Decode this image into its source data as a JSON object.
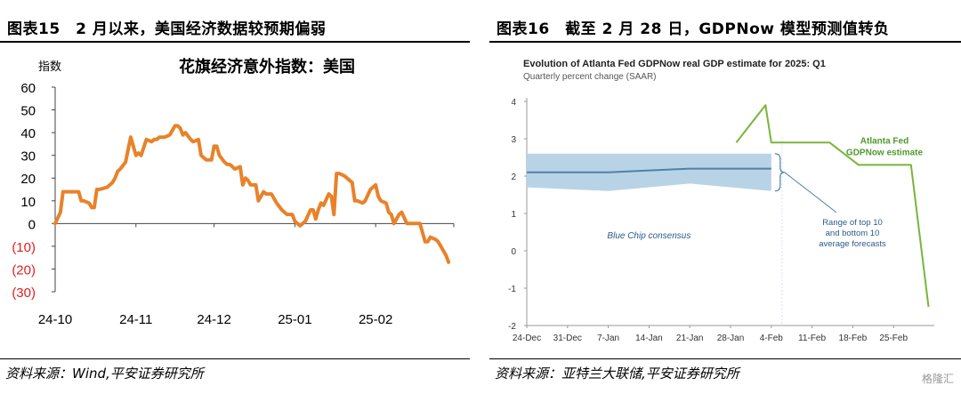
{
  "left": {
    "figure_title": "图表15　2 月以来，美国经济数据较预期偏弱",
    "source": "资料来源：Wind,平安证券研究所"
  },
  "right": {
    "figure_title": "图表16　截至 2 月 28 日，GDPNow 模型预测值转负",
    "source": "资料来源：亚特兰大联储,平安证券研究所"
  },
  "watermark": "格隆汇",
  "colors": {
    "orange": "#E8822A",
    "green": "#78B53B",
    "band": "#B9D3E6",
    "consensus_line": "#4F81A8",
    "negative_tick": "#E02020",
    "right_text_blue": "#2C5C86",
    "green_label": "#4E9A2E"
  },
  "chart_data": [
    {
      "type": "line",
      "title": "花旗经济意外指数：美国",
      "ylabel": "指数",
      "ylim": [
        -30,
        60
      ],
      "y_ticks": [
        60,
        50,
        40,
        30,
        20,
        10,
        0,
        -10,
        -20,
        -30
      ],
      "y_tick_labels": [
        "60",
        "50",
        "40",
        "30",
        "20",
        "10",
        "0",
        "(10)",
        "(20)",
        "(30)"
      ],
      "x_tick_labels": [
        "24-10",
        "24-11",
        "24-12",
        "25-01",
        "25-02"
      ],
      "x_tick_dates": [
        "2024-10-01",
        "2024-11-01",
        "2024-12-01",
        "2025-01-01",
        "2025-02-01"
      ],
      "xlim": [
        "2024-10-01",
        "2025-03-03"
      ],
      "grid": false,
      "series": [
        {
          "x": [
            "2024-10-01",
            "2024-10-03",
            "2024-10-04",
            "2024-10-05",
            "2024-10-08",
            "2024-10-09",
            "2024-10-10",
            "2024-10-11",
            "2024-10-12",
            "2024-10-14",
            "2024-10-15",
            "2024-10-16",
            "2024-10-17",
            "2024-10-18",
            "2024-10-21",
            "2024-10-22",
            "2024-10-23",
            "2024-10-24",
            "2024-10-25",
            "2024-10-26",
            "2024-10-28",
            "2024-10-30",
            "2024-11-01",
            "2024-11-02",
            "2024-11-03",
            "2024-11-05",
            "2024-11-07",
            "2024-11-08",
            "2024-11-09",
            "2024-11-10",
            "2024-11-11",
            "2024-11-12",
            "2024-11-14",
            "2024-11-16",
            "2024-11-17",
            "2024-11-18",
            "2024-11-19",
            "2024-11-20",
            "2024-11-22",
            "2024-11-23",
            "2024-11-25",
            "2024-11-26",
            "2024-11-28",
            "2024-11-30",
            "2024-12-01",
            "2024-12-02",
            "2024-12-03",
            "2024-12-05",
            "2024-12-06",
            "2024-12-07",
            "2024-12-09",
            "2024-12-11",
            "2024-12-12",
            "2024-12-13",
            "2024-12-14",
            "2024-12-15",
            "2024-12-17",
            "2024-12-18",
            "2024-12-20",
            "2024-12-21",
            "2024-12-23",
            "2024-12-25",
            "2024-12-27",
            "2024-12-29",
            "2024-12-31",
            "2025-01-01",
            "2025-01-03",
            "2025-01-05",
            "2025-01-07",
            "2025-01-08",
            "2025-01-09",
            "2025-01-10",
            "2025-01-11",
            "2025-01-12",
            "2025-01-14",
            "2025-01-15",
            "2025-01-16",
            "2025-01-17",
            "2025-01-18",
            "2025-01-20",
            "2025-01-21",
            "2025-01-23",
            "2025-01-24",
            "2025-01-25",
            "2025-01-27",
            "2025-01-28",
            "2025-01-30",
            "2025-02-01",
            "2025-02-02",
            "2025-02-03",
            "2025-02-05",
            "2025-02-06",
            "2025-02-07",
            "2025-02-08",
            "2025-02-10",
            "2025-02-11",
            "2025-02-13",
            "2025-02-14",
            "2025-02-15",
            "2025-02-16",
            "2025-02-18",
            "2025-02-20",
            "2025-02-21",
            "2025-02-22",
            "2025-02-24",
            "2025-02-25",
            "2025-02-26",
            "2025-02-27",
            "2025-02-28",
            "2025-03-01"
          ],
          "values": [
            0,
            5,
            14,
            14,
            14,
            14,
            14,
            10,
            10,
            9,
            7,
            7,
            15,
            15,
            16,
            17,
            18,
            20,
            23,
            24,
            27,
            38,
            30,
            31,
            30,
            37,
            36,
            37,
            37,
            38,
            38,
            38,
            39,
            43,
            43,
            42,
            39,
            40,
            37,
            36,
            37,
            30,
            28,
            28,
            34,
            34,
            30,
            27,
            26,
            26,
            24,
            25,
            17,
            20,
            19,
            17,
            17,
            10,
            14,
            13,
            13,
            9,
            6,
            4,
            4,
            1,
            -1,
            1,
            6,
            6,
            2,
            6,
            9,
            8,
            13,
            12,
            4,
            22,
            22,
            21,
            20,
            18,
            10,
            10,
            9,
            10,
            15,
            17,
            12,
            10,
            9,
            5,
            4,
            0,
            4,
            5,
            0,
            0,
            0,
            0,
            0,
            -8,
            -8,
            -6,
            -7,
            -8,
            -10,
            -12,
            -14,
            -17
          ]
        }
      ]
    },
    {
      "type": "line",
      "title": "Evolution of Atlanta Fed GDPNow real GDP estimate for 2025: Q1",
      "subtitle": "Quarterly percent change (SAAR)",
      "ylim": [
        -2,
        4
      ],
      "y_ticks": [
        4,
        3,
        2,
        1,
        0,
        -1,
        -2
      ],
      "y_tick_labels": [
        "4",
        "3",
        "2",
        "1",
        "0",
        "-1",
        "-2"
      ],
      "x_tick_labels": [
        "24-Dec",
        "31-Dec",
        "7-Jan",
        "14-Jan",
        "21-Jan",
        "28-Jan",
        "4-Feb",
        "11-Feb",
        "18-Feb",
        "25-Feb"
      ],
      "x_tick_dates": [
        "2024-12-24",
        "2024-12-31",
        "2025-01-07",
        "2025-01-14",
        "2025-01-21",
        "2025-01-28",
        "2025-02-04",
        "2025-02-11",
        "2025-02-18",
        "2025-02-25"
      ],
      "xlim": [
        "2024-12-24",
        "2025-03-04"
      ],
      "grid": false,
      "annotations": {
        "gdpnow_label": [
          "Atlanta Fed",
          "GDPNow estimate"
        ],
        "consensus_label": "Blue Chip consensus",
        "range_label": [
          "Range of top 10",
          "and bottom 10",
          "average forecasts"
        ]
      },
      "series": [
        {
          "key": "gdpnow",
          "x": [
            "2025-01-29",
            "2025-01-31",
            "2025-02-03",
            "2025-02-04",
            "2025-02-07",
            "2025-02-11",
            "2025-02-14",
            "2025-02-19",
            "2025-02-21",
            "2025-02-27",
            "2025-02-28",
            "2025-03-03"
          ],
          "values": [
            2.9,
            3.3,
            3.9,
            2.9,
            2.9,
            2.9,
            2.9,
            2.3,
            2.3,
            2.3,
            2.3,
            -1.5
          ]
        },
        {
          "key": "consensus",
          "x": [
            "2024-12-24",
            "2025-01-07",
            "2025-01-21",
            "2025-02-04"
          ],
          "values": [
            2.1,
            2.1,
            2.2,
            2.2
          ]
        },
        {
          "key": "range_upper",
          "x": [
            "2024-12-24",
            "2025-01-07",
            "2025-01-21",
            "2025-02-04"
          ],
          "values": [
            2.6,
            2.6,
            2.6,
            2.6
          ]
        },
        {
          "key": "range_lower",
          "x": [
            "2024-12-24",
            "2025-01-07",
            "2025-01-21",
            "2025-02-04"
          ],
          "values": [
            1.7,
            1.6,
            1.8,
            1.6
          ]
        }
      ]
    }
  ]
}
